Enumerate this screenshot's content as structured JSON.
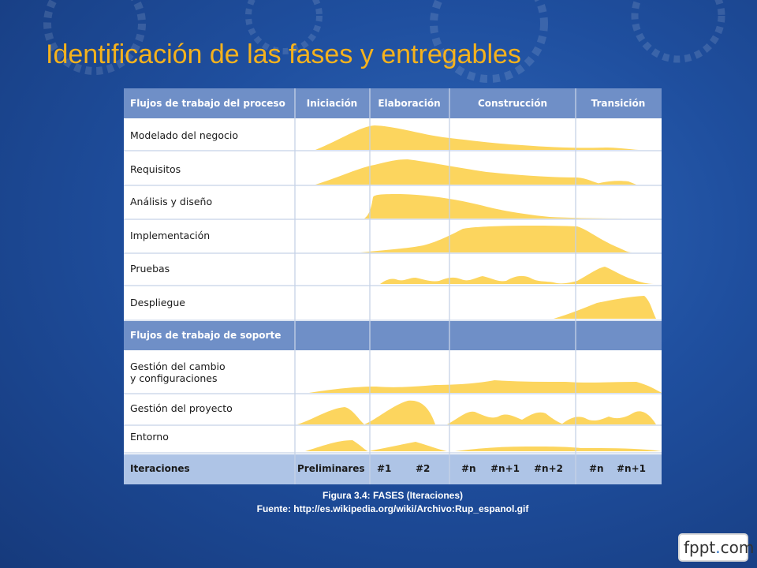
{
  "slide": {
    "title": "Identificación de las fases y entregables"
  },
  "table": {
    "header": {
      "workflows": "Flujos de trabajo del proceso",
      "phases": [
        "Iniciación",
        "Elaboración",
        "Construcción",
        "Transición"
      ]
    },
    "process_rows": [
      {
        "label": [
          "Modelado del negocio"
        ]
      },
      {
        "label": [
          "Requisitos"
        ]
      },
      {
        "label": [
          "Análisis y diseño"
        ]
      },
      {
        "label": [
          "Implementación"
        ]
      },
      {
        "label": [
          "Pruebas"
        ]
      },
      {
        "label": [
          "Despliegue"
        ]
      }
    ],
    "support_header": "Flujos de trabajo de soporte",
    "support_rows": [
      {
        "label": [
          "Gestión del cambio",
          "y configuraciones"
        ]
      },
      {
        "label": [
          "Gestión del proyecto"
        ]
      },
      {
        "label": [
          "Entorno"
        ]
      }
    ],
    "iterations": {
      "label": "Iteraciones",
      "values": [
        "Preliminares",
        "#1",
        "#2",
        "#n",
        "#n+1",
        "#n+2",
        "#n",
        "#n+1"
      ]
    }
  },
  "caption": {
    "line1": "Figura 3.4: FASES (Iteraciones)",
    "line2": "Fuente: http://es.wikipedia.org/wiki/Archivo:Rup_espanol.gif"
  },
  "logo": {
    "main": "fppt",
    "dot": ".",
    "suffix": "com"
  },
  "colors": {
    "title": "#f5b21d",
    "header": "#6f8fc7",
    "iterations_row": "#aec4e6",
    "hump": "#fcd55e",
    "grid": "#c5d2e6"
  }
}
